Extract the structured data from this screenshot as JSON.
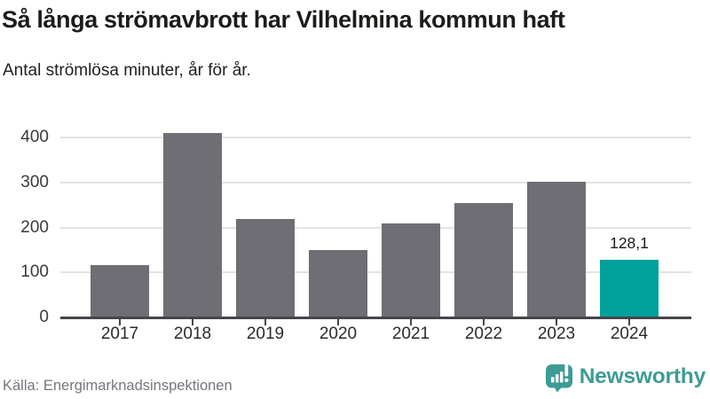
{
  "header": {
    "title": "Så långa strömavbrott har Vilhelmina kommun haft",
    "subtitle": "Antal strömlösa minuter, år för år."
  },
  "chart_data": {
    "type": "bar",
    "title": "Så långa strömavbrott har Vilhelmina kommun haft",
    "subtitle": "Antal strömlösa minuter, år för år.",
    "categories": [
      "2017",
      "2018",
      "2019",
      "2020",
      "2021",
      "2022",
      "2023",
      "2024"
    ],
    "values": [
      117,
      411,
      220,
      150,
      209,
      255,
      302,
      128.1
    ],
    "value_labels": [
      "",
      "",
      "",
      "",
      "",
      "",
      "",
      "128,1"
    ],
    "highlight_index": 7,
    "yticks": [
      0,
      100,
      200,
      300,
      400
    ],
    "ylim": [
      0,
      450
    ],
    "grid": "horizontal-only",
    "legend": "none",
    "colors": {
      "bar": "#6e6e74",
      "highlight": "#00a09b",
      "gridline": "#e3e3e3",
      "axis": "#45454a",
      "y_label": "#3a3a3e",
      "x_label": "#2b2b2b",
      "value_label": "#191919"
    }
  },
  "footer": {
    "source": "Källa: Energimarknadsinspektionen",
    "brand": "Newsworthy",
    "brand_color": "#3d9b96"
  }
}
